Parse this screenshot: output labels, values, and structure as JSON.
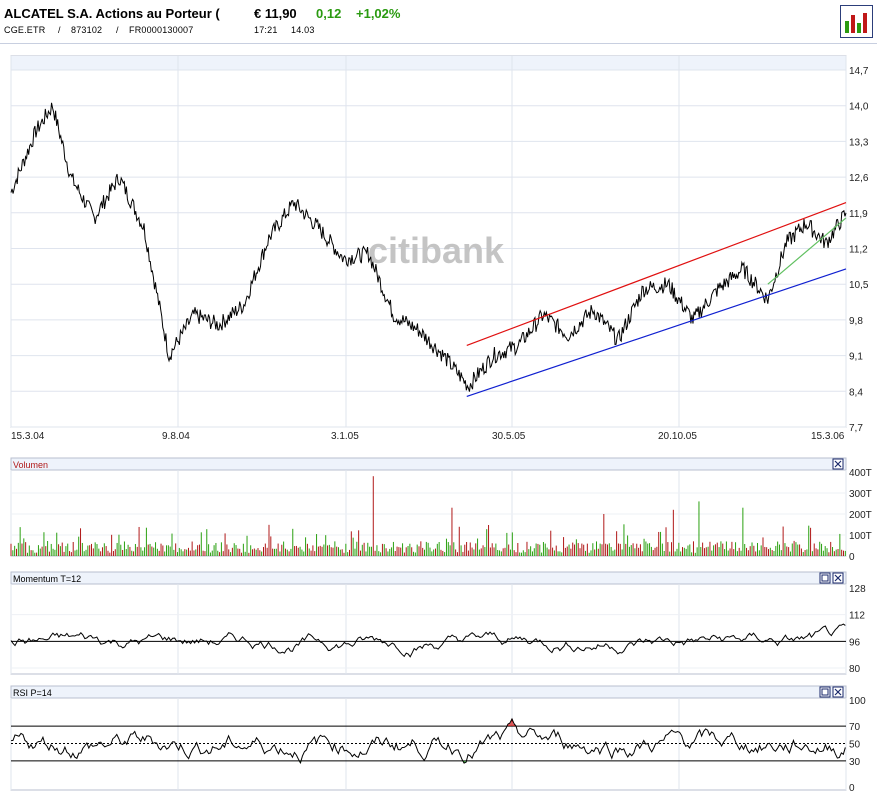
{
  "header": {
    "title": "ALCATEL S.A. Actions au Porteur (",
    "price": "€ 11,90",
    "change": "0,12",
    "change_pct": "+1,02%",
    "symbol": "CGE.ETR",
    "wkn": "873102",
    "isin": "FR0000130007",
    "time": "17:21",
    "date": "14.03",
    "sep": "/",
    "positive_color": "#2a9a10"
  },
  "chart_data": [
    {
      "type": "line",
      "panel": "price",
      "watermark": "citibank",
      "x_tick_labels": [
        "15.3.04",
        "9.8.04",
        "3.1.05",
        "30.5.05",
        "20.10.05",
        "15.3.06"
      ],
      "y_tick_labels": [
        "14,7",
        "14,0",
        "13,3",
        "12,6",
        "11,9",
        "11,2",
        "10,5",
        "9,8",
        "9,1",
        "8,4",
        "7,7"
      ],
      "ylim": [
        7.7,
        14.7
      ],
      "grid": true,
      "series": [
        {
          "color": "#000000",
          "x": [
            0,
            15,
            25,
            36,
            50,
            65,
            80,
            95,
            110,
            125,
            140,
            155,
            170,
            185,
            200,
            215,
            230,
            245,
            260,
            275,
            290,
            305,
            320,
            335,
            350,
            365,
            380,
            395,
            410,
            425,
            440,
            455,
            466,
            478,
            490,
            502
          ],
          "y": [
            12.3,
            13.5,
            14.0,
            12.6,
            11.8,
            12.6,
            11.6,
            9.1,
            9.9,
            9.7,
            10.1,
            11.4,
            12.1,
            11.6,
            11.0,
            11.1,
            9.9,
            9.6,
            9.1,
            8.5,
            9.1,
            9.3,
            9.9,
            9.5,
            10.0,
            9.4,
            10.4,
            10.5,
            9.8,
            10.4,
            10.8,
            10.2,
            11.3,
            11.7,
            11.3,
            11.9
          ]
        }
      ],
      "trend_lines": [
        {
          "name": "upper",
          "color": "#e01010",
          "x": [
            274,
            502
          ],
          "y": [
            9.3,
            12.1
          ]
        },
        {
          "name": "lower",
          "color": "#1020d0",
          "x": [
            274,
            502
          ],
          "y": [
            8.3,
            10.8
          ]
        },
        {
          "name": "short",
          "color": "#60c060",
          "x": [
            455,
            502
          ],
          "y": [
            10.5,
            11.8
          ]
        }
      ]
    },
    {
      "type": "bar",
      "panel": "volume",
      "title": "Volumen",
      "y_tick_labels": [
        "400T",
        "300T",
        "200T",
        "100T",
        "0"
      ],
      "ylim": [
        0,
        400
      ],
      "up_color": "#2aa010",
      "down_color": "#b01818",
      "spikes": [
        {
          "x": 218,
          "value": 380
        },
        {
          "x": 265,
          "value": 230
        },
        {
          "x": 356,
          "value": 200
        },
        {
          "x": 398,
          "value": 220
        },
        {
          "x": 414,
          "value": 260
        },
        {
          "x": 440,
          "value": 230
        }
      ]
    },
    {
      "type": "line",
      "panel": "momentum",
      "title": "Momentum T=12",
      "y_tick_labels": [
        "128",
        "112",
        "96",
        "80"
      ],
      "ylim": [
        80,
        128
      ],
      "reference_value": 96
    },
    {
      "type": "line",
      "panel": "rsi",
      "title": "RSI P=14",
      "y_tick_labels": [
        "100",
        "70",
        "50",
        "30",
        "0"
      ],
      "ylim": [
        0,
        100
      ],
      "upper_band": 70,
      "lower_band": 30,
      "overbought_color": "#d01010",
      "oversold_color": "#20a020"
    }
  ]
}
